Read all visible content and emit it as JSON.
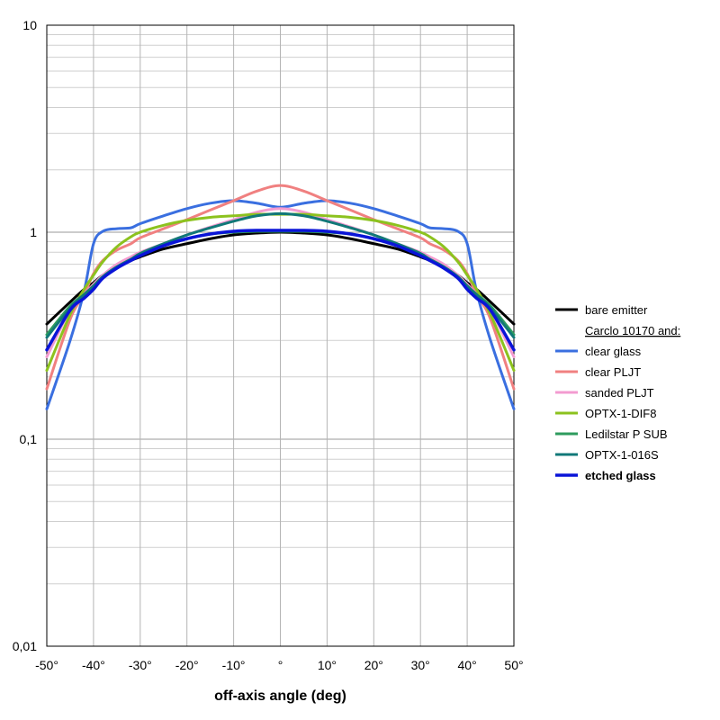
{
  "chart_data": {
    "type": "line",
    "title": "",
    "xlabel": "off-axis angle (deg)",
    "ylabel": "",
    "y_scale": "log",
    "xlim": [
      -50,
      50
    ],
    "ylim": [
      0.01,
      10
    ],
    "grid": true,
    "legend_position": "right",
    "x_ticks": [
      {
        "value": -50,
        "label": "-50°"
      },
      {
        "value": -40,
        "label": "-40°"
      },
      {
        "value": -30,
        "label": "-30°"
      },
      {
        "value": -20,
        "label": "-20°"
      },
      {
        "value": -10,
        "label": "-10°"
      },
      {
        "value": 0,
        "label": "°"
      },
      {
        "value": 10,
        "label": "10°"
      },
      {
        "value": 20,
        "label": "20°"
      },
      {
        "value": 30,
        "label": "30°"
      },
      {
        "value": 40,
        "label": "40°"
      },
      {
        "value": 50,
        "label": "50°"
      }
    ],
    "y_ticks": [
      {
        "value": 0.01,
        "label": "0,01"
      },
      {
        "value": 0.1,
        "label": "0,1"
      },
      {
        "value": 1,
        "label": "1"
      },
      {
        "value": 10,
        "label": "10"
      }
    ],
    "legend_heading": "Carclo 10170 and:",
    "x": [
      -50,
      -45,
      -42,
      -40,
      -38,
      -35,
      -32,
      -30,
      -25,
      -20,
      -15,
      -10,
      -5,
      0,
      5,
      10,
      15,
      20,
      25,
      30,
      32,
      35,
      38,
      40,
      42,
      45,
      50
    ],
    "series": [
      {
        "name": "bare emitter",
        "color": "#000000",
        "width": 3,
        "bold": false,
        "values": [
          0.36,
          0.46,
          0.53,
          0.57,
          0.62,
          0.68,
          0.73,
          0.76,
          0.83,
          0.88,
          0.93,
          0.97,
          0.99,
          1.0,
          0.99,
          0.97,
          0.93,
          0.88,
          0.83,
          0.76,
          0.73,
          0.68,
          0.62,
          0.57,
          0.53,
          0.46,
          0.36
        ]
      },
      {
        "name": "clear glass",
        "color": "#3a6fe0",
        "width": 3,
        "bold": false,
        "values": [
          0.14,
          0.3,
          0.52,
          0.88,
          1.01,
          1.04,
          1.05,
          1.1,
          1.2,
          1.3,
          1.38,
          1.42,
          1.38,
          1.32,
          1.38,
          1.42,
          1.38,
          1.3,
          1.2,
          1.1,
          1.05,
          1.04,
          1.01,
          0.88,
          0.52,
          0.3,
          0.14
        ]
      },
      {
        "name": "clear PLJT",
        "color": "#f08080",
        "width": 3,
        "bold": false,
        "values": [
          0.175,
          0.38,
          0.5,
          0.63,
          0.73,
          0.82,
          0.88,
          0.94,
          1.04,
          1.15,
          1.28,
          1.42,
          1.58,
          1.68,
          1.58,
          1.42,
          1.28,
          1.15,
          1.04,
          0.94,
          0.88,
          0.82,
          0.73,
          0.63,
          0.5,
          0.38,
          0.175
        ]
      },
      {
        "name": "sanded PLJT",
        "color": "#f39bd0",
        "width": 3,
        "bold": false,
        "values": [
          0.25,
          0.42,
          0.5,
          0.56,
          0.62,
          0.7,
          0.76,
          0.8,
          0.88,
          0.97,
          1.06,
          1.15,
          1.25,
          1.3,
          1.25,
          1.15,
          1.06,
          0.97,
          0.88,
          0.8,
          0.76,
          0.7,
          0.62,
          0.56,
          0.5,
          0.42,
          0.25
        ]
      },
      {
        "name": "OPTX-1-DIF8",
        "color": "#8cc21e",
        "width": 3,
        "bold": false,
        "values": [
          0.215,
          0.4,
          0.53,
          0.62,
          0.72,
          0.85,
          0.95,
          1.0,
          1.08,
          1.14,
          1.18,
          1.2,
          1.22,
          1.22,
          1.22,
          1.2,
          1.18,
          1.14,
          1.08,
          1.0,
          0.95,
          0.85,
          0.72,
          0.62,
          0.53,
          0.4,
          0.215
        ]
      },
      {
        "name": "Ledilstar P SUB",
        "color": "#2e9b5e",
        "width": 3,
        "bold": false,
        "values": [
          0.32,
          0.44,
          0.5,
          0.55,
          0.61,
          0.68,
          0.74,
          0.78,
          0.86,
          0.93,
          0.98,
          1.0,
          1.01,
          1.01,
          1.01,
          1.0,
          0.98,
          0.93,
          0.86,
          0.78,
          0.74,
          0.68,
          0.61,
          0.55,
          0.5,
          0.44,
          0.32
        ]
      },
      {
        "name": "OPTX-1-016S",
        "color": "#117878",
        "width": 3,
        "bold": false,
        "values": [
          0.31,
          0.43,
          0.5,
          0.55,
          0.61,
          0.68,
          0.74,
          0.79,
          0.88,
          0.97,
          1.05,
          1.13,
          1.2,
          1.23,
          1.2,
          1.13,
          1.05,
          0.97,
          0.88,
          0.79,
          0.74,
          0.68,
          0.61,
          0.55,
          0.5,
          0.43,
          0.31
        ]
      },
      {
        "name": "etched glass",
        "color": "#0a14d8",
        "width": 3.5,
        "bold": true,
        "values": [
          0.27,
          0.42,
          0.48,
          0.53,
          0.6,
          0.67,
          0.73,
          0.77,
          0.86,
          0.93,
          0.98,
          1.01,
          1.02,
          1.02,
          1.02,
          1.01,
          0.98,
          0.93,
          0.86,
          0.77,
          0.73,
          0.67,
          0.6,
          0.53,
          0.48,
          0.42,
          0.27
        ]
      }
    ]
  }
}
